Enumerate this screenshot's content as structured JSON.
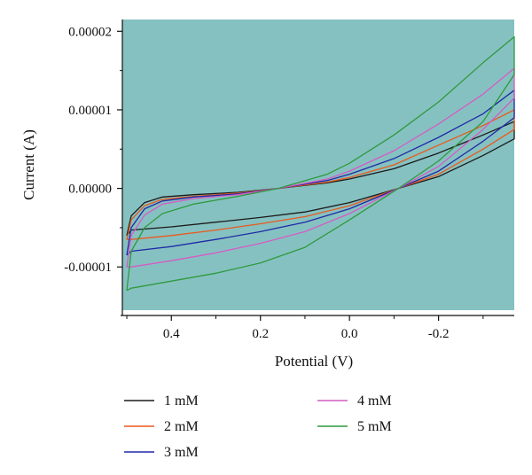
{
  "chart_data": {
    "type": "line",
    "title": "",
    "xlabel": "Potential (V)",
    "ylabel": "Current (A)",
    "x_reversed": true,
    "xlim": [
      0.51,
      -0.37
    ],
    "ylim": [
      -1.55e-05,
      2.15e-05
    ],
    "x_ticks": [
      0.4,
      0.2,
      0.0,
      -0.2
    ],
    "x_tick_labels": [
      "0.4",
      "0.2",
      "0.0",
      "-0.2"
    ],
    "y_ticks": [
      2e-05,
      1e-05,
      0.0,
      -1e-05
    ],
    "y_tick_labels": [
      "0.00002",
      "0.00001",
      "0.00000",
      "-0.00001"
    ],
    "plot_background": "#86c1c1",
    "grid": false,
    "legend_position": "bottom",
    "series": [
      {
        "name": "1 mM",
        "color": "#1a1a1a",
        "upper": [
          [
            0.5,
            -6e-06
          ],
          [
            0.49,
            -3.5e-06
          ],
          [
            0.46,
            -1.8e-06
          ],
          [
            0.42,
            -1.1e-06
          ],
          [
            0.35,
            -8e-07
          ],
          [
            0.25,
            -5e-07
          ],
          [
            0.16,
            0.0
          ],
          [
            0.05,
            7e-07
          ],
          [
            0.0,
            1.2e-06
          ],
          [
            -0.1,
            2.5e-06
          ],
          [
            -0.2,
            4.5e-06
          ],
          [
            -0.3,
            6.8e-06
          ],
          [
            -0.37,
            8.5e-06
          ]
        ],
        "lower": [
          [
            -0.37,
            6.3e-06
          ],
          [
            -0.3,
            4.2e-06
          ],
          [
            -0.2,
            1.5e-06
          ],
          [
            -0.11,
            0.0
          ],
          [
            0.0,
            -1.8e-06
          ],
          [
            0.1,
            -3e-06
          ],
          [
            0.2,
            -3.7e-06
          ],
          [
            0.3,
            -4.3e-06
          ],
          [
            0.4,
            -4.9e-06
          ],
          [
            0.49,
            -5.3e-06
          ],
          [
            0.5,
            -6e-06
          ]
        ]
      },
      {
        "name": "2 mM",
        "color": "#e85a1c",
        "upper": [
          [
            0.5,
            -6.5e-06
          ],
          [
            0.49,
            -4e-06
          ],
          [
            0.46,
            -2.2e-06
          ],
          [
            0.42,
            -1.4e-06
          ],
          [
            0.35,
            -1e-06
          ],
          [
            0.25,
            -6e-07
          ],
          [
            0.16,
            0.0
          ],
          [
            0.05,
            8e-07
          ],
          [
            0.0,
            1.4e-06
          ],
          [
            -0.1,
            3e-06
          ],
          [
            -0.2,
            5.5e-06
          ],
          [
            -0.3,
            8e-06
          ],
          [
            -0.37,
            1e-05
          ]
        ],
        "lower": [
          [
            -0.37,
            7.5e-06
          ],
          [
            -0.3,
            5e-06
          ],
          [
            -0.2,
            1.8e-06
          ],
          [
            -0.11,
            0.0
          ],
          [
            0.0,
            -2.2e-06
          ],
          [
            0.1,
            -3.6e-06
          ],
          [
            0.2,
            -4.5e-06
          ],
          [
            0.3,
            -5.3e-06
          ],
          [
            0.4,
            -6e-06
          ],
          [
            0.49,
            -6.5e-06
          ],
          [
            0.5,
            -6.5e-06
          ]
        ]
      },
      {
        "name": "3 mM",
        "color": "#1f2aa6",
        "upper": [
          [
            0.5,
            -8.5e-06
          ],
          [
            0.49,
            -5e-06
          ],
          [
            0.46,
            -2.6e-06
          ],
          [
            0.42,
            -1.6e-06
          ],
          [
            0.35,
            -1.1e-06
          ],
          [
            0.25,
            -7e-07
          ],
          [
            0.16,
            0.0
          ],
          [
            0.05,
            1e-06
          ],
          [
            0.0,
            1.8e-06
          ],
          [
            -0.1,
            3.8e-06
          ],
          [
            -0.2,
            6.5e-06
          ],
          [
            -0.3,
            9.5e-06
          ],
          [
            -0.37,
            1.25e-05
          ]
        ],
        "lower": [
          [
            -0.37,
            9e-06
          ],
          [
            -0.3,
            6e-06
          ],
          [
            -0.2,
            2.2e-06
          ],
          [
            -0.11,
            0.0
          ],
          [
            0.0,
            -2.6e-06
          ],
          [
            0.1,
            -4.3e-06
          ],
          [
            0.2,
            -5.5e-06
          ],
          [
            0.3,
            -6.5e-06
          ],
          [
            0.4,
            -7.4e-06
          ],
          [
            0.49,
            -8e-06
          ],
          [
            0.5,
            -8.5e-06
          ]
        ]
      },
      {
        "name": "4 mM",
        "color": "#d45cc4",
        "upper": [
          [
            0.5,
            -1e-05
          ],
          [
            0.49,
            -6e-06
          ],
          [
            0.46,
            -3.4e-06
          ],
          [
            0.42,
            -2e-06
          ],
          [
            0.35,
            -1.3e-06
          ],
          [
            0.25,
            -8e-07
          ],
          [
            0.16,
            0.0
          ],
          [
            0.05,
            1.2e-06
          ],
          [
            0.0,
            2.2e-06
          ],
          [
            -0.1,
            4.8e-06
          ],
          [
            -0.2,
            8.2e-06
          ],
          [
            -0.3,
            1.2e-05
          ],
          [
            -0.37,
            1.53e-05
          ]
        ],
        "lower": [
          [
            -0.37,
            1.15e-05
          ],
          [
            -0.3,
            7.5e-06
          ],
          [
            -0.2,
            2.8e-06
          ],
          [
            -0.11,
            0.0
          ],
          [
            0.0,
            -3.2e-06
          ],
          [
            0.1,
            -5.5e-06
          ],
          [
            0.2,
            -7e-06
          ],
          [
            0.3,
            -8.2e-06
          ],
          [
            0.4,
            -9.2e-06
          ],
          [
            0.49,
            -1e-05
          ],
          [
            0.5,
            -1e-05
          ]
        ]
      },
      {
        "name": "5 mM",
        "color": "#2e9a3e",
        "upper": [
          [
            0.5,
            -1.3e-05
          ],
          [
            0.49,
            -8e-06
          ],
          [
            0.46,
            -5e-06
          ],
          [
            0.42,
            -3.2e-06
          ],
          [
            0.35,
            -2e-06
          ],
          [
            0.25,
            -1e-06
          ],
          [
            0.16,
            0.0
          ],
          [
            0.05,
            1.8e-06
          ],
          [
            0.0,
            3.2e-06
          ],
          [
            -0.1,
            6.8e-06
          ],
          [
            -0.2,
            1.1e-05
          ],
          [
            -0.3,
            1.6e-05
          ],
          [
            -0.37,
            1.93e-05
          ]
        ],
        "lower": [
          [
            -0.37,
            1.45e-05
          ],
          [
            -0.3,
            8.5e-06
          ],
          [
            -0.2,
            3.5e-06
          ],
          [
            -0.11,
            0.0
          ],
          [
            0.0,
            -4e-06
          ],
          [
            0.1,
            -7.5e-06
          ],
          [
            0.2,
            -9.5e-06
          ],
          [
            0.3,
            -1.08e-05
          ],
          [
            0.4,
            -1.18e-05
          ],
          [
            0.49,
            -1.27e-05
          ],
          [
            0.5,
            -1.3e-05
          ]
        ]
      }
    ]
  }
}
